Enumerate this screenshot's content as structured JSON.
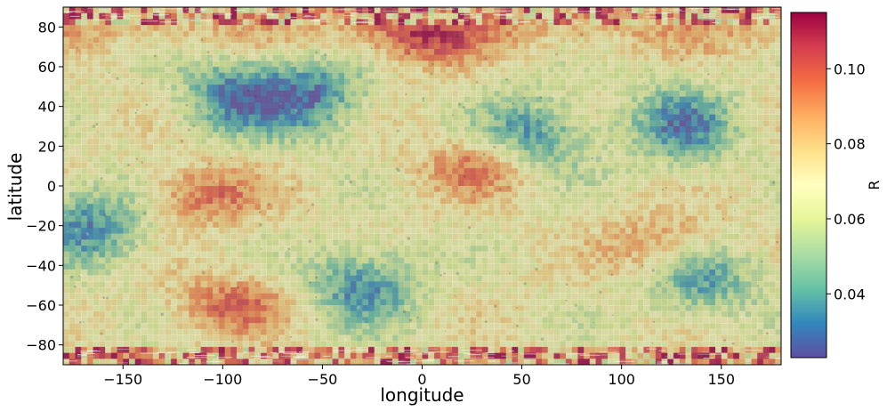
{
  "chart_data": {
    "type": "heatmap",
    "title": "",
    "xlabel": "longitude",
    "ylabel": "latitude",
    "xlim": [
      -180,
      180
    ],
    "ylim": [
      -90,
      90
    ],
    "xticks": [
      -150,
      -100,
      -50,
      0,
      50,
      100,
      150
    ],
    "yticks": [
      -80,
      -60,
      -40,
      -20,
      0,
      20,
      40,
      60,
      80
    ],
    "colorbar": {
      "label": "R",
      "range": [
        0.023,
        0.115
      ],
      "ticks": [
        0.04,
        0.06,
        0.08,
        0.1
      ],
      "tick_labels": [
        "0.04",
        "0.06",
        "0.08",
        "0.10"
      ],
      "colormap": "Spectral_r",
      "colors": [
        "#5e4fa2",
        "#3288bd",
        "#66c2a5",
        "#abdda4",
        "#e6f598",
        "#ffffbf",
        "#fee08b",
        "#fdae61",
        "#f46d43",
        "#d53e4f",
        "#9e0142"
      ]
    },
    "overlay_alpha": 0.5,
    "low_R_regions": [
      {
        "lon": -95,
        "lat": 45,
        "note": "blue band north-west"
      },
      {
        "lon": -55,
        "lat": 45,
        "note": "blue patch"
      },
      {
        "lon": -165,
        "lat": -20,
        "note": "ring structure"
      },
      {
        "lon": 55,
        "lat": 25,
        "note": "blue patch"
      },
      {
        "lon": 130,
        "lat": 30,
        "note": "blue region east"
      },
      {
        "lon": 140,
        "lat": -45,
        "note": "dark blue south-east"
      },
      {
        "lon": -30,
        "lat": -50,
        "note": "blue south band"
      }
    ],
    "high_R_regions": [
      {
        "lon": 0,
        "lat": 75,
        "note": "red north polar cap"
      },
      {
        "lon": -110,
        "lat": -5,
        "note": "red patch"
      },
      {
        "lon": 30,
        "lat": 10,
        "note": "red patch"
      },
      {
        "lon": 125,
        "lat": -30,
        "note": "red patch"
      },
      {
        "lon": -95,
        "lat": -60,
        "note": "red patch south"
      }
    ]
  }
}
